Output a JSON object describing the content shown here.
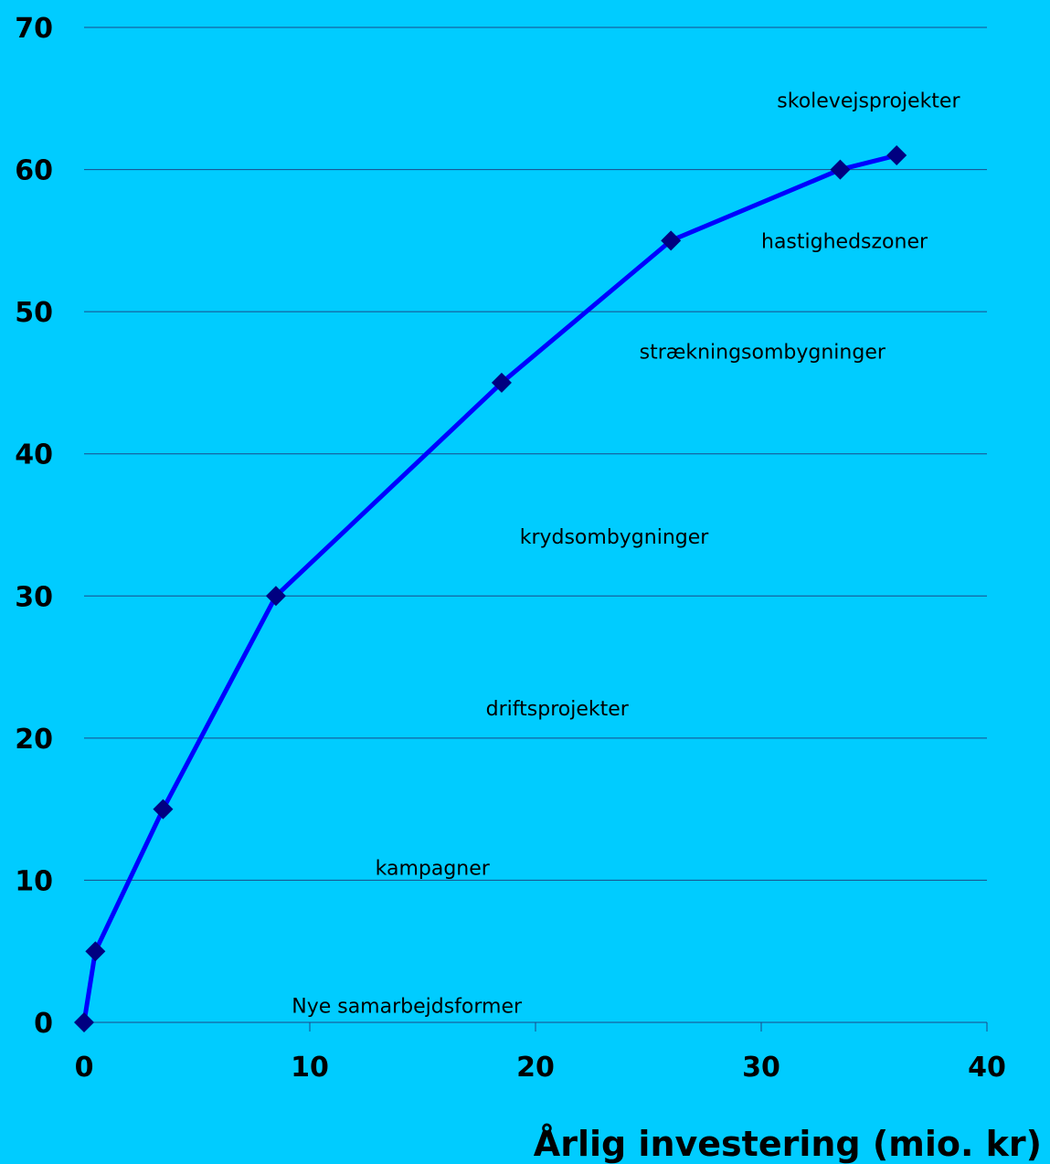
{
  "chart_data": {
    "type": "line",
    "title": "",
    "xlabel": "Årlig investering (mio. kr)",
    "ylabel": "",
    "xlim": [
      0,
      40
    ],
    "ylim": [
      0,
      70
    ],
    "x_ticks": [
      "0",
      "10",
      "20",
      "30",
      "40"
    ],
    "y_ticks": [
      "0",
      "10",
      "20",
      "30",
      "40",
      "50",
      "60",
      "70"
    ],
    "grid": "horizontal",
    "legend": "none",
    "series": [
      {
        "color": "#0000FF",
        "marker_color": "#000080",
        "marker": "diamond",
        "x": [
          0,
          0.5,
          3.5,
          8.5,
          18.5,
          26,
          33.5,
          36
        ],
        "y": [
          0,
          5,
          15,
          30,
          45,
          55,
          60,
          61
        ]
      }
    ],
    "annotations": [
      {
        "text": "Nye samarbejdsformer",
        "x": 9.2,
        "y": 1.2
      },
      {
        "text": "kampagner",
        "x": 12.9,
        "y": 10.9
      },
      {
        "text": "driftsprojekter",
        "x": 17.8,
        "y": 22.1
      },
      {
        "text": "krydsombygninger",
        "x": 19.3,
        "y": 34.2
      },
      {
        "text": "strækningsombygninger",
        "x": 24.6,
        "y": 47.2
      },
      {
        "text": "hastighedszoner",
        "x": 30.0,
        "y": 55.0
      },
      {
        "text": "skolevejsprojekter",
        "x": 30.7,
        "y": 64.9
      }
    ]
  }
}
